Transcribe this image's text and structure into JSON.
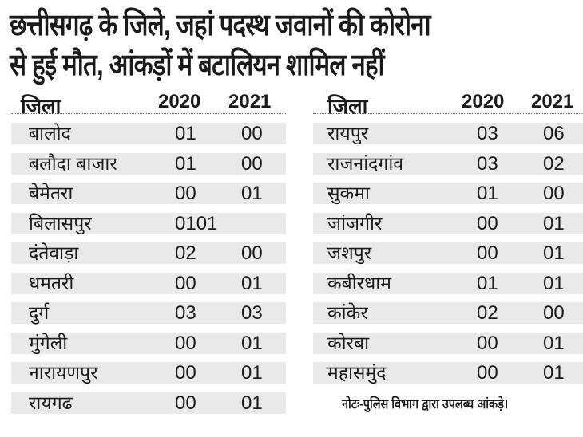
{
  "title": {
    "line1": "छत्तीसगढ़ के जिले, जहां पदस्थ जवानों की कोरोना",
    "line2": "से हुई मौत, आंकड़ों में बटालियन शामिल नहीं"
  },
  "headers": {
    "district": "जिला",
    "y2020": "2020",
    "y2021": "2021"
  },
  "left_rows": [
    {
      "district": "बालोद",
      "y2020": "01",
      "y2021": "00"
    },
    {
      "district": "बलौदा बाजार",
      "y2020": "01",
      "y2021": "00"
    },
    {
      "district": "बेमेतरा",
      "y2020": "00",
      "y2021": "01"
    },
    {
      "district": "बिलासपुर",
      "y2020": "0101",
      "y2021": ""
    },
    {
      "district": "दंतेवाड़ा",
      "y2020": "02",
      "y2021": "00"
    },
    {
      "district": "धमतरी",
      "y2020": "00",
      "y2021": "01"
    },
    {
      "district": "दुर्ग",
      "y2020": "03",
      "y2021": "03"
    },
    {
      "district": "मुंगेली",
      "y2020": "00",
      "y2021": "01"
    },
    {
      "district": "नारायणपुर",
      "y2020": "00",
      "y2021": "01"
    },
    {
      "district": "रायगढ",
      "y2020": "00",
      "y2021": "01"
    }
  ],
  "right_rows": [
    {
      "district": "रायपुर",
      "y2020": "03",
      "y2021": "06"
    },
    {
      "district": "राजनांदगांव",
      "y2020": "03",
      "y2021": "02"
    },
    {
      "district": "सुकमा",
      "y2020": "01",
      "y2021": "00"
    },
    {
      "district": "जांजगीर",
      "y2020": "00",
      "y2021": "01"
    },
    {
      "district": "जशपुर",
      "y2020": "00",
      "y2021": "01"
    },
    {
      "district": "कबीरधाम",
      "y2020": "01",
      "y2021": "01"
    },
    {
      "district": "कांकेर",
      "y2020": "02",
      "y2021": "00"
    },
    {
      "district": "कोरबा",
      "y2020": "00",
      "y2021": "01"
    },
    {
      "district": "महासमुंद",
      "y2020": "00",
      "y2021": "01"
    }
  ],
  "note": "नोटः-पुलिस विभाग द्वारा उपलब्ध आंकड़े।",
  "colors": {
    "row_band": "#e9e9e9",
    "text": "#1a1a1a"
  }
}
